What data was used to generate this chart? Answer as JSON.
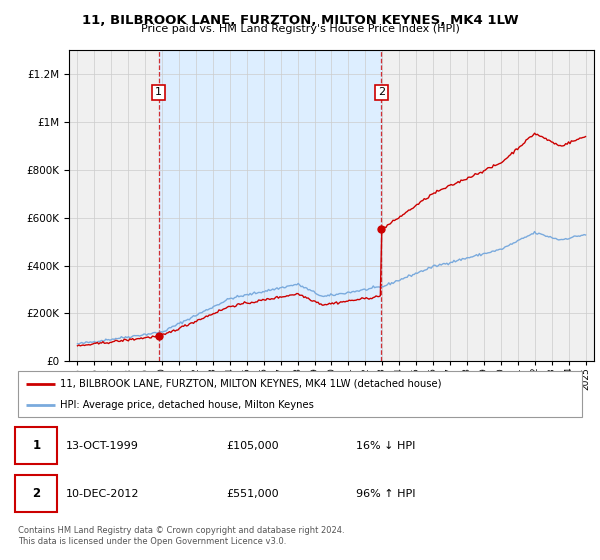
{
  "title": "11, BILBROOK LANE, FURZTON, MILTON KEYNES, MK4 1LW",
  "subtitle": "Price paid vs. HM Land Registry's House Price Index (HPI)",
  "sale1_date": 1999.79,
  "sale1_price": 105000,
  "sale1_label": "1",
  "sale2_date": 2012.94,
  "sale2_price": 551000,
  "sale2_label": "2",
  "legend_line1": "11, BILBROOK LANE, FURZTON, MILTON KEYNES, MK4 1LW (detached house)",
  "legend_line2": "HPI: Average price, detached house, Milton Keynes",
  "table_row1": [
    "1",
    "13-OCT-1999",
    "£105,000",
    "16% ↓ HPI"
  ],
  "table_row2": [
    "2",
    "10-DEC-2012",
    "£551,000",
    "96% ↑ HPI"
  ],
  "footnote1": "Contains HM Land Registry data © Crown copyright and database right 2024.",
  "footnote2": "This data is licensed under the Open Government Licence v3.0.",
  "red_color": "#cc0000",
  "blue_color": "#7aaadd",
  "shaded_region_color": "#ddeeff",
  "ylim_max": 1300000,
  "xmin": 1994.5,
  "xmax": 2025.5
}
